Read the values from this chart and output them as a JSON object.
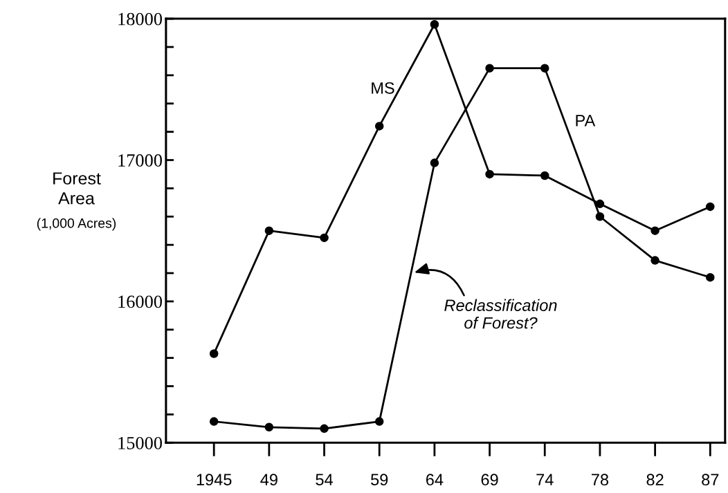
{
  "chart_data": {
    "type": "line",
    "ylabel": "Forest\nArea\n(1,000 Acres)",
    "categories": [
      "1945",
      "49",
      "54",
      "59",
      "64",
      "69",
      "74",
      "78",
      "82",
      "87"
    ],
    "series": [
      {
        "name": "MS",
        "color": "#000000",
        "values": [
          15630,
          16500,
          16450,
          17240,
          17960,
          16900,
          16890,
          16690,
          16500,
          16670
        ]
      },
      {
        "name": "PA",
        "color": "#000000",
        "values": [
          15150,
          15110,
          15100,
          15150,
          16980,
          17650,
          17650,
          16600,
          16290,
          16170
        ]
      }
    ],
    "ylim": [
      15000,
      18000
    ],
    "yticks": [
      15000,
      {
        "value": 15200,
        "label": null
      },
      {
        "value": 15400,
        "label": null
      },
      {
        "value": 15600,
        "label": null
      },
      {
        "value": 15800,
        "label": null
      },
      16000,
      {
        "value": 16200,
        "label": null
      },
      {
        "value": 16400,
        "label": null
      },
      {
        "value": 16600,
        "label": null
      },
      {
        "value": 16800,
        "label": null
      },
      17000,
      {
        "value": 17200,
        "label": null
      },
      {
        "value": 17400,
        "label": null
      },
      {
        "value": 17600,
        "label": null
      },
      {
        "value": 17800,
        "label": null
      },
      18000
    ],
    "annotations": [
      "Reclassification\nof Forest?"
    ],
    "marker": "circle",
    "line_style": "solid",
    "grid": false,
    "legend": false
  }
}
